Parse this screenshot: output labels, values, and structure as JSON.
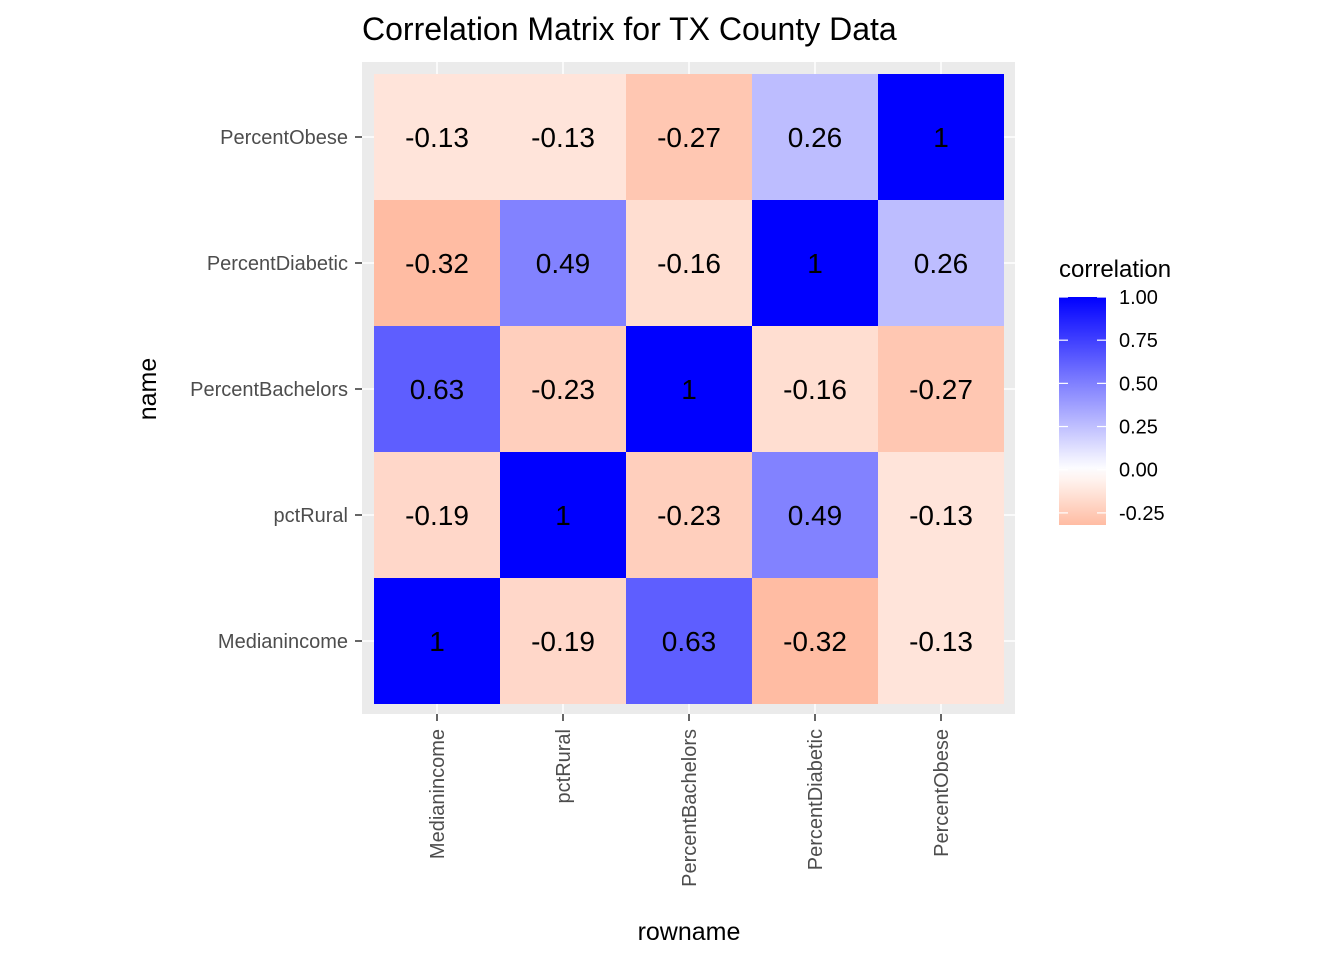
{
  "chart_data": {
    "type": "heatmap",
    "title": "Correlation Matrix for TX County Data",
    "xlabel": "rowname",
    "ylabel": "name",
    "x_categories": [
      "Medianincome",
      "pctRural",
      "PercentBachelors",
      "PercentDiabetic",
      "PercentObese"
    ],
    "y_categories": [
      "Medianincome",
      "pctRural",
      "PercentBachelors",
      "PercentDiabetic",
      "PercentObese"
    ],
    "matrix": [
      [
        1,
        -0.19,
        0.63,
        -0.32,
        -0.13
      ],
      [
        -0.19,
        1,
        -0.23,
        0.49,
        -0.13
      ],
      [
        0.63,
        -0.23,
        1,
        -0.16,
        -0.27
      ],
      [
        -0.32,
        0.49,
        -0.16,
        1,
        0.26
      ],
      [
        -0.13,
        -0.13,
        -0.27,
        0.26,
        1
      ]
    ],
    "cell_labels": [
      [
        "1",
        "-0.19",
        "0.63",
        "-0.32",
        "-0.13"
      ],
      [
        "-0.19",
        "1",
        "-0.23",
        "0.49",
        "-0.13"
      ],
      [
        "0.63",
        "-0.23",
        "1",
        "-0.16",
        "-0.27"
      ],
      [
        "-0.32",
        "0.49",
        "-0.16",
        "1",
        "0.26"
      ],
      [
        "-0.13",
        "-0.13",
        "-0.27",
        "0.26",
        "1"
      ]
    ],
    "legend": {
      "title": "correlation",
      "placement": "right",
      "ticks": [
        1.0,
        0.75,
        0.5,
        0.25,
        0.0,
        -0.25
      ],
      "tick_labels": [
        "1.00",
        "0.75",
        "0.50",
        "0.25",
        "0.00",
        "-0.25"
      ],
      "range": [
        -0.32,
        1.0
      ]
    },
    "colors": {
      "low": "#ff9770",
      "mid": "#ffffff",
      "high": "#0000ff",
      "panel_background": "#ebebeb",
      "grid": "#ffffff"
    },
    "grid": true
  }
}
